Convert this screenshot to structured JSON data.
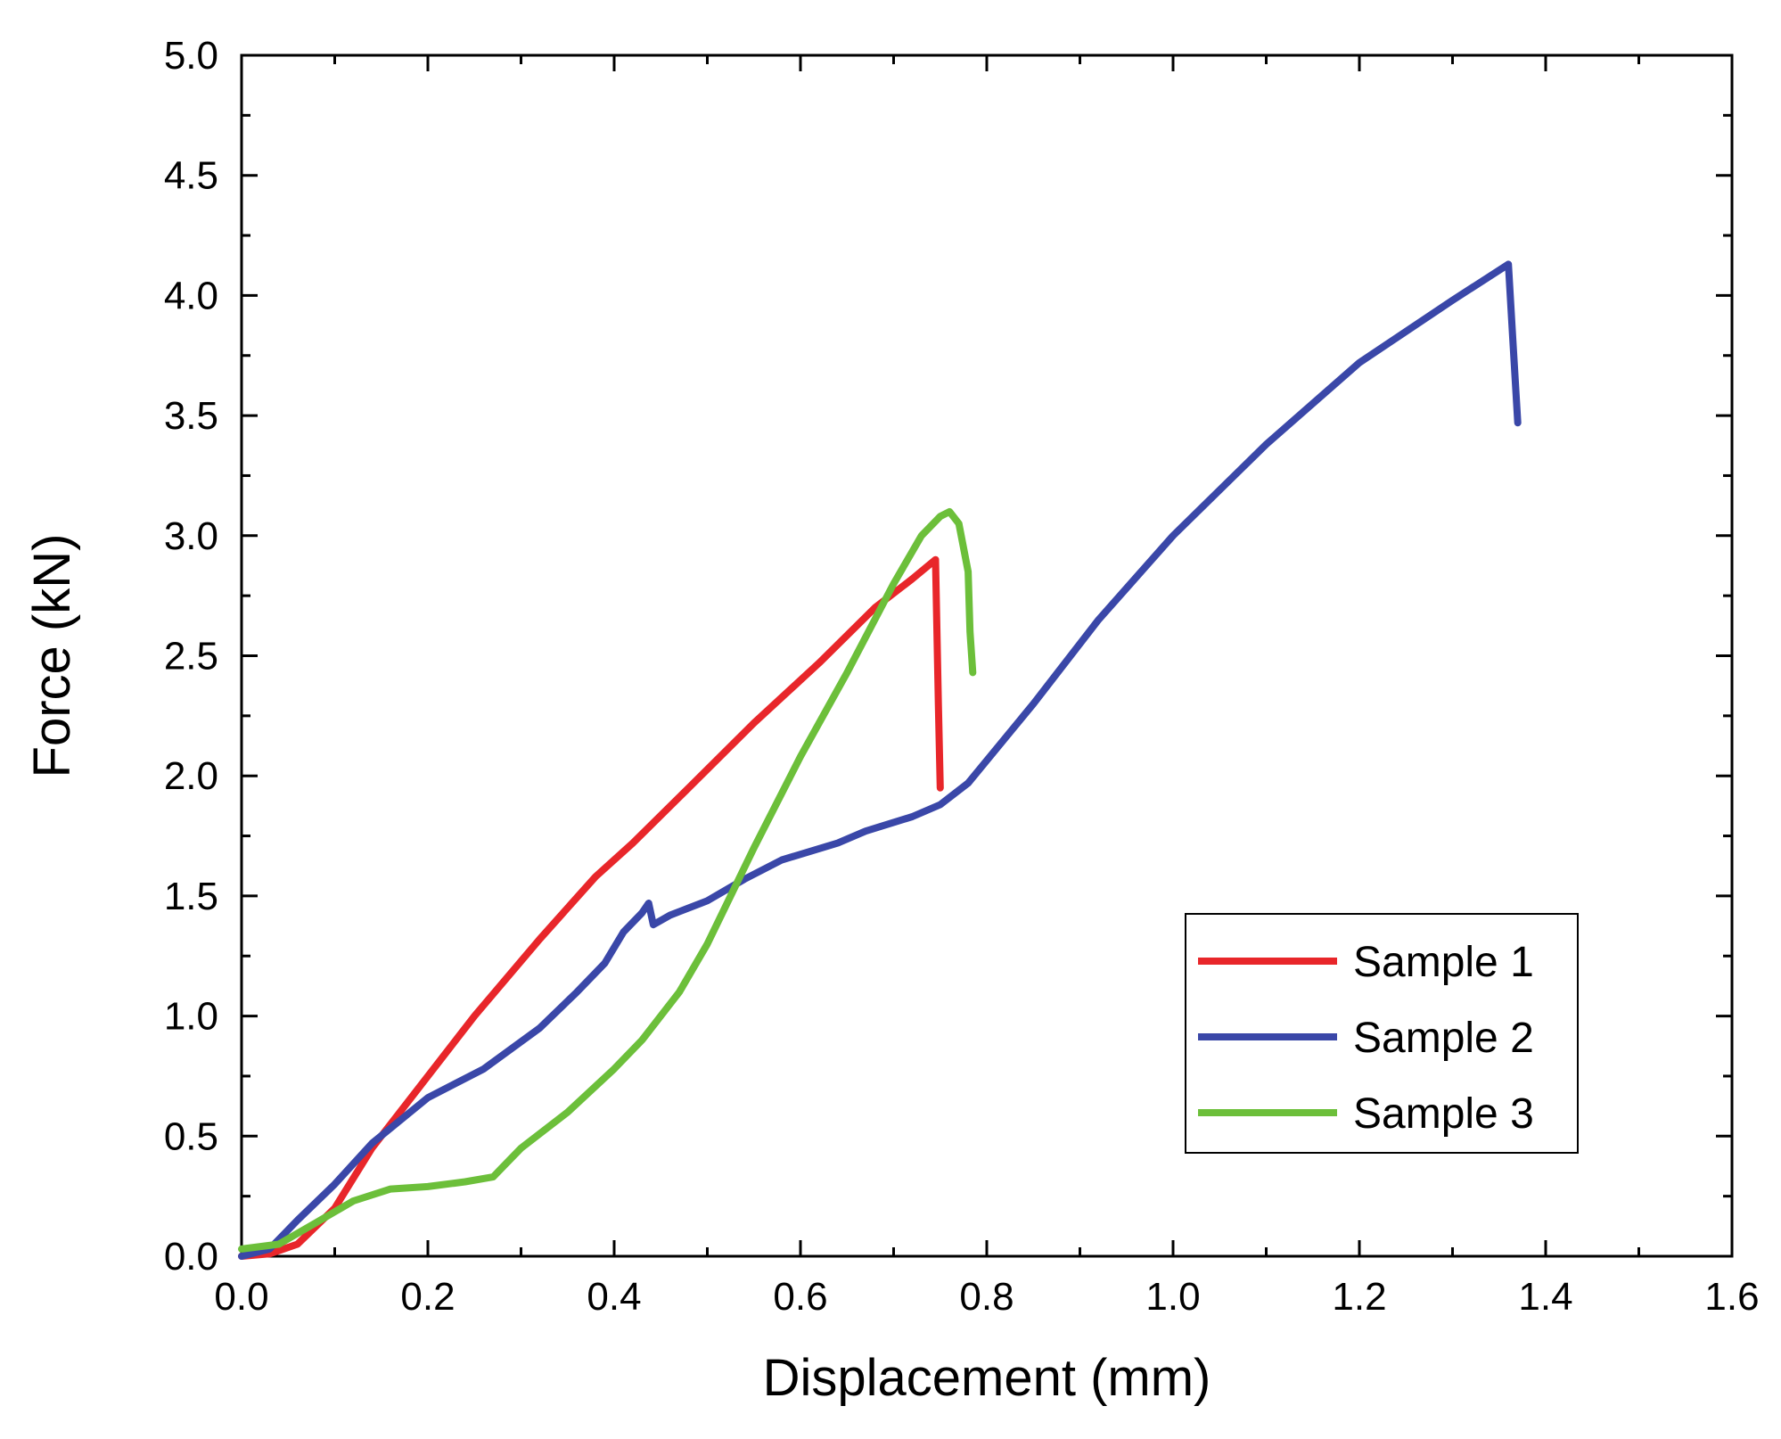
{
  "chart_data": {
    "type": "line",
    "title": "",
    "xlabel": "Displacement (mm)",
    "ylabel": "Force (kN)",
    "xlim": [
      0.0,
      1.6
    ],
    "ylim": [
      0.0,
      5.0
    ],
    "x_ticks": [
      "0.0",
      "0.2",
      "0.4",
      "0.6",
      "0.8",
      "1.0",
      "1.2",
      "1.4",
      "1.6"
    ],
    "y_ticks": [
      "0.0",
      "0.5",
      "1.0",
      "1.5",
      "2.0",
      "2.5",
      "3.0",
      "3.5",
      "4.0",
      "4.5",
      "5.0"
    ],
    "grid": false,
    "legend_position": "lower-right",
    "series": [
      {
        "name": "Sample 1",
        "color": "#e8262a",
        "x": [
          0.0,
          0.03,
          0.06,
          0.1,
          0.14,
          0.18,
          0.25,
          0.32,
          0.38,
          0.42,
          0.48,
          0.55,
          0.62,
          0.68,
          0.72,
          0.745,
          0.748,
          0.75
        ],
        "y": [
          0.0,
          0.01,
          0.05,
          0.2,
          0.45,
          0.65,
          1.0,
          1.32,
          1.58,
          1.72,
          1.95,
          2.22,
          2.47,
          2.7,
          2.82,
          2.9,
          2.3,
          1.95
        ]
      },
      {
        "name": "Sample 2",
        "color": "#3a47a8",
        "x": [
          0.0,
          0.03,
          0.06,
          0.1,
          0.14,
          0.2,
          0.26,
          0.32,
          0.36,
          0.39,
          0.41,
          0.43,
          0.437,
          0.442,
          0.46,
          0.5,
          0.54,
          0.58,
          0.64,
          0.67,
          0.72,
          0.75,
          0.78,
          0.85,
          0.92,
          1.0,
          1.1,
          1.2,
          1.3,
          1.36,
          1.365,
          1.37
        ],
        "y": [
          0.0,
          0.03,
          0.15,
          0.3,
          0.47,
          0.66,
          0.78,
          0.95,
          1.1,
          1.22,
          1.35,
          1.43,
          1.47,
          1.38,
          1.42,
          1.48,
          1.57,
          1.65,
          1.72,
          1.77,
          1.83,
          1.88,
          1.97,
          2.3,
          2.65,
          3.0,
          3.38,
          3.72,
          3.98,
          4.13,
          3.8,
          3.47
        ]
      },
      {
        "name": "Sample 3",
        "color": "#6cbf3a",
        "x": [
          0.0,
          0.04,
          0.08,
          0.12,
          0.16,
          0.2,
          0.24,
          0.27,
          0.28,
          0.3,
          0.35,
          0.4,
          0.43,
          0.47,
          0.5,
          0.55,
          0.6,
          0.65,
          0.7,
          0.73,
          0.75,
          0.76,
          0.77,
          0.78,
          0.782,
          0.785
        ],
        "y": [
          0.03,
          0.05,
          0.14,
          0.23,
          0.28,
          0.29,
          0.31,
          0.33,
          0.37,
          0.45,
          0.6,
          0.78,
          0.9,
          1.1,
          1.3,
          1.7,
          2.08,
          2.43,
          2.8,
          3.0,
          3.08,
          3.1,
          3.05,
          2.85,
          2.6,
          2.43
        ]
      }
    ]
  }
}
